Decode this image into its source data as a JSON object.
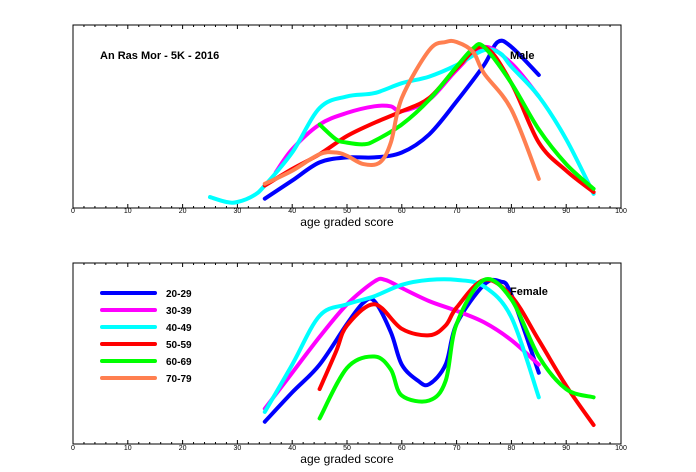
{
  "colors": {
    "20-29": "#0000ff",
    "30-39": "#ff00ff",
    "40-49": "#00ffff",
    "50-59": "#ff0000",
    "60-69": "#00ff00",
    "70-79": "#ff7f50"
  },
  "chart_data": [
    {
      "type": "line",
      "title": "An Ras Mor - 5K - 2016",
      "label": "Male",
      "xlabel": "age graded score",
      "ylabel": "",
      "xlim": [
        0,
        100
      ],
      "ylim": [
        0,
        1
      ],
      "x_ticks": [
        "0",
        "10",
        "20",
        "30",
        "40",
        "50",
        "60",
        "70",
        "80",
        "90",
        "100"
      ],
      "legend": false,
      "grid": false,
      "series": [
        {
          "name": "20-29",
          "points": [
            [
              35,
              0.02
            ],
            [
              40,
              0.13
            ],
            [
              45,
              0.24
            ],
            [
              50,
              0.27
            ],
            [
              55,
              0.27
            ],
            [
              60,
              0.3
            ],
            [
              65,
              0.41
            ],
            [
              70,
              0.61
            ],
            [
              75,
              0.83
            ],
            [
              77.5,
              0.97
            ],
            [
              80,
              0.94
            ],
            [
              85,
              0.77
            ]
          ]
        },
        {
          "name": "30-39",
          "points": [
            [
              37,
              0.18
            ],
            [
              40,
              0.32
            ],
            [
              45,
              0.47
            ],
            [
              50,
              0.54
            ],
            [
              55,
              0.58
            ],
            [
              58,
              0.58
            ],
            [
              60,
              0.55
            ],
            [
              65,
              0.62
            ],
            [
              70,
              0.8
            ],
            [
              75,
              0.94
            ],
            [
              80,
              0.84
            ],
            [
              85,
              0.64
            ]
          ]
        },
        {
          "name": "40-49",
          "points": [
            [
              25,
              0.03
            ],
            [
              28,
              0.0
            ],
            [
              30,
              0.0
            ],
            [
              33,
              0.04
            ],
            [
              35,
              0.1
            ],
            [
              40,
              0.3
            ],
            [
              45,
              0.57
            ],
            [
              50,
              0.64
            ],
            [
              55,
              0.66
            ],
            [
              60,
              0.72
            ],
            [
              65,
              0.76
            ],
            [
              70,
              0.83
            ],
            [
              75,
              0.92
            ],
            [
              78,
              0.9
            ],
            [
              80,
              0.82
            ],
            [
              85,
              0.64
            ],
            [
              90,
              0.38
            ],
            [
              95,
              0.05
            ]
          ]
        },
        {
          "name": "50-59",
          "points": [
            [
              35,
              0.1
            ],
            [
              40,
              0.2
            ],
            [
              45,
              0.29
            ],
            [
              50,
              0.4
            ],
            [
              55,
              0.48
            ],
            [
              60,
              0.55
            ],
            [
              65,
              0.63
            ],
            [
              70,
              0.81
            ],
            [
              75,
              0.94
            ],
            [
              80,
              0.72
            ],
            [
              85,
              0.36
            ],
            [
              90,
              0.19
            ],
            [
              95,
              0.06
            ]
          ]
        },
        {
          "name": "60-69",
          "points": [
            [
              45,
              0.47
            ],
            [
              48,
              0.38
            ],
            [
              50,
              0.36
            ],
            [
              53,
              0.35
            ],
            [
              55,
              0.37
            ],
            [
              60,
              0.47
            ],
            [
              65,
              0.62
            ],
            [
              70,
              0.82
            ],
            [
              73,
              0.93
            ],
            [
              75,
              0.94
            ],
            [
              80,
              0.72
            ],
            [
              85,
              0.44
            ],
            [
              90,
              0.23
            ],
            [
              95,
              0.08
            ]
          ]
        },
        {
          "name": "70-79",
          "points": [
            [
              35,
              0.11
            ],
            [
              40,
              0.19
            ],
            [
              45,
              0.29
            ],
            [
              48,
              0.3
            ],
            [
              50,
              0.28
            ],
            [
              53,
              0.23
            ],
            [
              56,
              0.24
            ],
            [
              58,
              0.36
            ],
            [
              60,
              0.63
            ],
            [
              65,
              0.92
            ],
            [
              68,
              0.97
            ],
            [
              70,
              0.97
            ],
            [
              73,
              0.91
            ],
            [
              75,
              0.78
            ],
            [
              80,
              0.56
            ],
            [
              85,
              0.14
            ]
          ]
        }
      ]
    },
    {
      "type": "line",
      "title": "",
      "label": "Female",
      "xlabel": "age graded score",
      "ylabel": "",
      "xlim": [
        0,
        100
      ],
      "ylim": [
        0,
        1
      ],
      "x_ticks": [
        "0",
        "10",
        "20",
        "30",
        "40",
        "50",
        "60",
        "70",
        "80",
        "90",
        "100"
      ],
      "legend": true,
      "legend_position": "left",
      "grid": false,
      "series": [
        {
          "name": "20-29",
          "points": [
            [
              35,
              0.1
            ],
            [
              40,
              0.28
            ],
            [
              45,
              0.45
            ],
            [
              50,
              0.7
            ],
            [
              53,
              0.83
            ],
            [
              55,
              0.84
            ],
            [
              58,
              0.65
            ],
            [
              60,
              0.45
            ],
            [
              63,
              0.35
            ],
            [
              65,
              0.33
            ],
            [
              68,
              0.45
            ],
            [
              70,
              0.7
            ],
            [
              75,
              0.94
            ],
            [
              78,
              0.96
            ],
            [
              80,
              0.88
            ],
            [
              85,
              0.4
            ]
          ]
        },
        {
          "name": "30-39",
          "points": [
            [
              35,
              0.18
            ],
            [
              40,
              0.4
            ],
            [
              45,
              0.62
            ],
            [
              50,
              0.82
            ],
            [
              55,
              0.96
            ],
            [
              57,
              0.97
            ],
            [
              60,
              0.92
            ],
            [
              65,
              0.84
            ],
            [
              70,
              0.78
            ],
            [
              75,
              0.71
            ],
            [
              80,
              0.6
            ],
            [
              85,
              0.45
            ]
          ]
        },
        {
          "name": "40-49",
          "points": [
            [
              35,
              0.16
            ],
            [
              40,
              0.45
            ],
            [
              45,
              0.75
            ],
            [
              50,
              0.82
            ],
            [
              55,
              0.87
            ],
            [
              60,
              0.94
            ],
            [
              65,
              0.97
            ],
            [
              70,
              0.97
            ],
            [
              75,
              0.93
            ],
            [
              80,
              0.74
            ],
            [
              85,
              0.25
            ]
          ]
        },
        {
          "name": "50-59",
          "points": [
            [
              45,
              0.3
            ],
            [
              48,
              0.53
            ],
            [
              50,
              0.69
            ],
            [
              55,
              0.82
            ],
            [
              60,
              0.67
            ],
            [
              65,
              0.63
            ],
            [
              68,
              0.69
            ],
            [
              70,
              0.8
            ],
            [
              75,
              0.97
            ],
            [
              80,
              0.87
            ],
            [
              85,
              0.6
            ],
            [
              90,
              0.32
            ],
            [
              95,
              0.08
            ]
          ]
        },
        {
          "name": "60-69",
          "points": [
            [
              45,
              0.12
            ],
            [
              50,
              0.43
            ],
            [
              55,
              0.5
            ],
            [
              58,
              0.42
            ],
            [
              60,
              0.26
            ],
            [
              65,
              0.23
            ],
            [
              68,
              0.35
            ],
            [
              70,
              0.7
            ],
            [
              75,
              0.97
            ],
            [
              80,
              0.85
            ],
            [
              85,
              0.5
            ],
            [
              90,
              0.3
            ],
            [
              95,
              0.25
            ]
          ]
        },
        {
          "name": "70-79",
          "points": []
        }
      ]
    }
  ]
}
